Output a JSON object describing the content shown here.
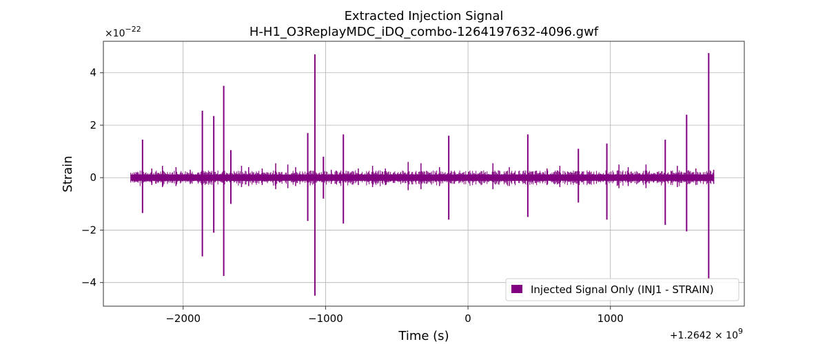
{
  "chart_data": {
    "type": "line",
    "title": "Extracted Injection Signal",
    "subtitle": "H-H1_O3ReplayMDC_iDQ_combo-1264197632-4096.gwf",
    "xlabel": "Time (s)",
    "ylabel": "Strain",
    "x_offset_label": "+1.2642 × 10",
    "x_offset_exponent": "9",
    "y_scale_label": "×10",
    "y_scale_exponent": "−22",
    "xlim": [
      -2560,
      1940
    ],
    "ylim": [
      -4.9,
      5.2
    ],
    "x_ticks": [
      -2000,
      -1000,
      0,
      1000
    ],
    "x_tick_labels": [
      "−2000",
      "−1000",
      "0",
      "1000"
    ],
    "y_ticks": [
      -4,
      -2,
      0,
      2,
      4
    ],
    "y_tick_labels": [
      "−4",
      "−2",
      "0",
      "2",
      "4"
    ],
    "grid": true,
    "legend_position": "lower-right",
    "series": [
      {
        "name": "Injected Signal Only (INJ1 - STRAIN)",
        "color": "#800080",
        "time_range": [
          -2368,
          1728
        ],
        "baseline_amplitude": [
          -0.12,
          0.12
        ],
        "spikes": [
          {
            "t": -2285,
            "max": 1.45,
            "min": -1.35
          },
          {
            "t": -1865,
            "max": 2.55,
            "min": -3.0
          },
          {
            "t": -1785,
            "max": 2.35,
            "min": -2.1
          },
          {
            "t": -1715,
            "max": 3.5,
            "min": -3.75
          },
          {
            "t": -1665,
            "max": 1.05,
            "min": -1.0
          },
          {
            "t": -1125,
            "max": 1.7,
            "min": -1.65
          },
          {
            "t": -1075,
            "max": 4.7,
            "min": -4.5
          },
          {
            "t": -1015,
            "max": 0.8,
            "min": -0.8
          },
          {
            "t": -875,
            "max": 1.65,
            "min": -1.75
          },
          {
            "t": -135,
            "max": 1.6,
            "min": -1.6
          },
          {
            "t": 420,
            "max": 1.65,
            "min": -1.5
          },
          {
            "t": 775,
            "max": 1.1,
            "min": -0.95
          },
          {
            "t": 975,
            "max": 1.3,
            "min": -1.6
          },
          {
            "t": 1385,
            "max": 1.45,
            "min": -1.8
          },
          {
            "t": 1535,
            "max": 2.4,
            "min": -2.05
          },
          {
            "t": 1690,
            "max": 4.75,
            "min": -3.85
          }
        ],
        "small_spikes": [
          {
            "t": -2220,
            "amp": 0.35
          },
          {
            "t": -2145,
            "amp": 0.45
          },
          {
            "t": -2050,
            "amp": 0.4
          },
          {
            "t": -1950,
            "amp": 0.3
          },
          {
            "t": -1590,
            "amp": 0.45
          },
          {
            "t": -1540,
            "amp": 0.4
          },
          {
            "t": -1445,
            "amp": 0.35
          },
          {
            "t": -1350,
            "amp": 0.55
          },
          {
            "t": -1265,
            "amp": 0.5
          },
          {
            "t": -1210,
            "amp": 0.4
          },
          {
            "t": -960,
            "amp": 0.3
          },
          {
            "t": -770,
            "amp": 0.35
          },
          {
            "t": -670,
            "amp": 0.45
          },
          {
            "t": -580,
            "amp": 0.35
          },
          {
            "t": -420,
            "amp": 0.6
          },
          {
            "t": -330,
            "amp": 0.55
          },
          {
            "t": -200,
            "amp": 0.4
          },
          {
            "t": 175,
            "amp": 0.55
          },
          {
            "t": 290,
            "amp": 0.4
          },
          {
            "t": 555,
            "amp": 0.35
          },
          {
            "t": 645,
            "amp": 0.45
          },
          {
            "t": 1060,
            "amp": 0.5
          },
          {
            "t": 1125,
            "amp": 0.4
          },
          {
            "t": 1250,
            "amp": 0.5
          },
          {
            "t": 1470,
            "amp": 0.45
          },
          {
            "t": 1600,
            "amp": 0.35
          },
          {
            "t": 1725,
            "amp": 0.3
          }
        ]
      }
    ]
  }
}
